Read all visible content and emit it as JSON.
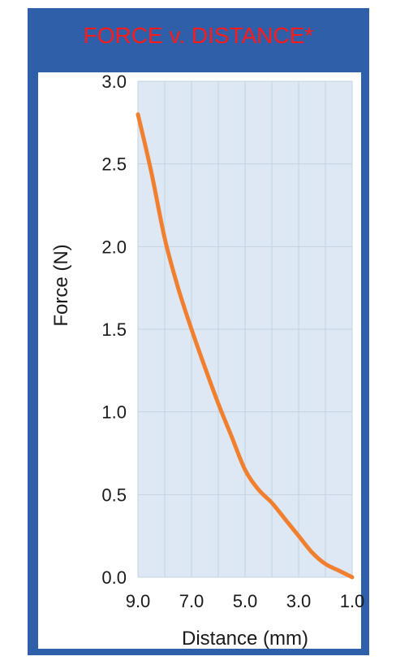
{
  "chart_data": {
    "type": "line",
    "title": "FORCE v. DISTANCE*",
    "xlabel": "Distance (mm)",
    "ylabel": "Force (N)",
    "xlim": [
      9.0,
      1.0
    ],
    "x_reversed": true,
    "ylim": [
      0.0,
      3.0
    ],
    "x_tick_labels": [
      "9.0",
      "7.0",
      "5.0",
      "3.0",
      "1.0"
    ],
    "y_tick_labels": [
      "3.0",
      "2.5",
      "2.0",
      "1.5",
      "1.0",
      "0.5",
      "0.0"
    ],
    "grid": true,
    "legend": "none",
    "series": [
      {
        "color": "#f08030",
        "x": [
          9.0,
          8.5,
          8.0,
          7.5,
          7.0,
          6.5,
          6.0,
          5.5,
          5.0,
          4.5,
          4.0,
          3.5,
          3.0,
          2.5,
          2.0,
          1.5,
          1.0
        ],
        "y": [
          2.8,
          2.45,
          2.05,
          1.75,
          1.5,
          1.27,
          1.05,
          0.85,
          0.65,
          0.53,
          0.45,
          0.35,
          0.25,
          0.15,
          0.08,
          0.04,
          0.0
        ]
      }
    ],
    "colors": {
      "frame": "#2e5fa8",
      "title": "#ff1a1a",
      "plot_background": "#dde8f4",
      "gridline": "#c4d2e2"
    }
  }
}
